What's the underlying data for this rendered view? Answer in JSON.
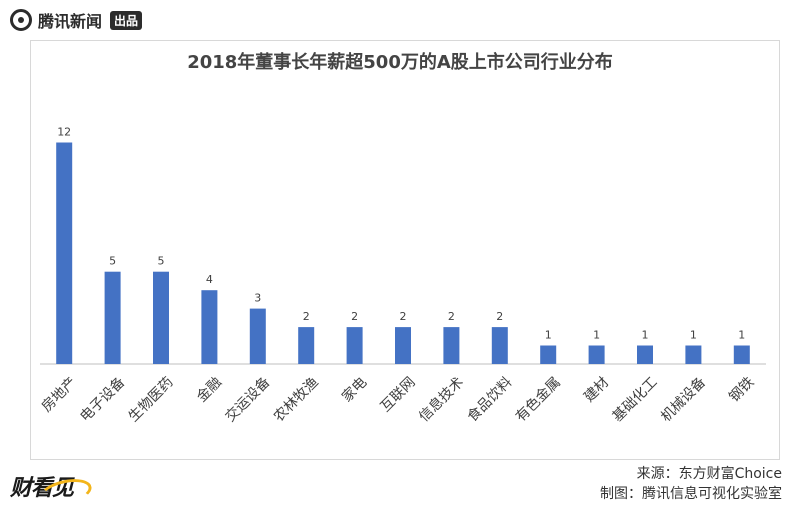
{
  "brand": {
    "name": "腾讯新闻",
    "badge": "出品",
    "bottom_logo": "财看见"
  },
  "chart_data": {
    "type": "bar",
    "title": "2018年董事长年薪超500万的A股上市公司行业分布",
    "categories": [
      "房地产",
      "电子设备",
      "生物医药",
      "金融",
      "交运设备",
      "农林牧渔",
      "家电",
      "互联网",
      "信息技术",
      "食品饮料",
      "有色金属",
      "建材",
      "基础化工",
      "机械设备",
      "钢铁"
    ],
    "values": [
      12,
      5,
      5,
      4,
      3,
      2,
      2,
      2,
      2,
      2,
      1,
      1,
      1,
      1,
      1
    ],
    "ylim": [
      0,
      13
    ],
    "bar_color": "#4472c4",
    "grid": false,
    "legend": "none"
  },
  "footer": {
    "source": "来源：东方财富Choice",
    "credit": "制图：腾讯信息可视化实验室"
  },
  "colors": {
    "bar": "#4472c4",
    "axis": "#bfbfbf",
    "label": "#404040"
  }
}
